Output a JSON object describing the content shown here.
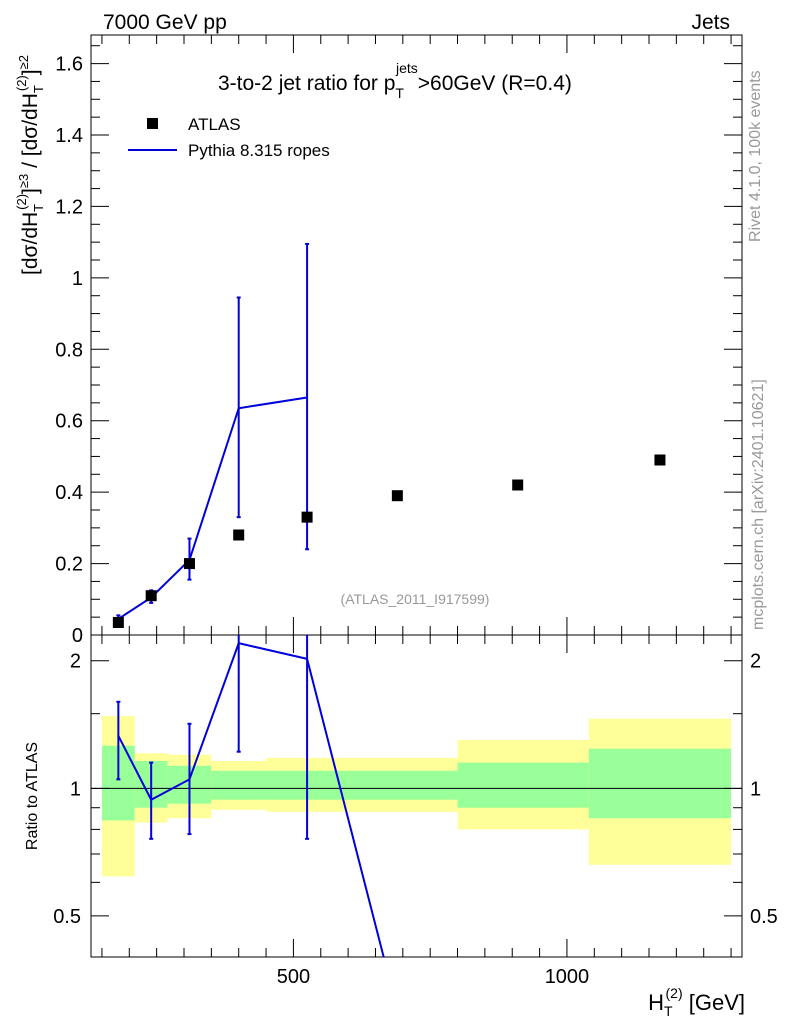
{
  "header": {
    "left": "7000 GeV pp",
    "right": "Jets"
  },
  "side_labels": {
    "rivet": "Rivet 4.1.0,  100k events",
    "mcplots": "mcplots.cern.ch [arXiv:2401.10621]"
  },
  "analysis_ref": "(ATLAS_2011_I917599)",
  "colors": {
    "mc": "#0000dd",
    "data": "#000000",
    "band_inner": "#99ff99",
    "band_outer": "#ffff99"
  },
  "chart_data": [
    {
      "type": "scatter",
      "role": "main",
      "title": "3-to-2 jet ratio for p_T^jets > 60GeV (R=0.4)",
      "title_parts": {
        "pre": "3-to-2 jet ratio for p",
        "sub": "T",
        "sup": "jets",
        "post": ">60GeV (R=0.4)"
      },
      "ylabel": "[dσ/dH_T^(2)]≥3 / [dσ/dH_T^(2)]≥2",
      "ylabel_parts": {
        "a": "[dσ/dH",
        "b": "T",
        "c": "(2)",
        "d": "]",
        "e": "≥3",
        "f": " / [dσ/dH",
        "g": "T",
        "h": "(2)",
        "i": "]",
        "j": "≥2"
      },
      "xlim": [
        130,
        1320
      ],
      "ylim": [
        0,
        1.68
      ],
      "y_ticks": [
        0,
        0.2,
        0.4,
        0.6,
        0.8,
        1,
        1.2,
        1.4,
        1.6
      ],
      "y_tick_labels": [
        "0",
        "0.2",
        "0.4",
        "0.6",
        "0.8",
        "1",
        "1.2",
        "1.4",
        "1.6"
      ],
      "legend": [
        {
          "name": "ATLAS",
          "kind": "marker"
        },
        {
          "name": "Pythia 8.315 ropes",
          "kind": "line"
        }
      ],
      "series": [
        {
          "name": "ATLAS",
          "x": [
            180,
            240,
            310,
            400,
            525,
            690,
            910,
            1170
          ],
          "y": [
            0.035,
            0.11,
            0.2,
            0.28,
            0.33,
            0.39,
            0.42,
            0.49
          ]
        },
        {
          "name": "Pythia 8.315 ropes",
          "x": [
            180,
            240,
            310,
            400,
            525
          ],
          "y": [
            0.045,
            0.105,
            0.21,
            0.635,
            0.665
          ],
          "err_low": [
            0.032,
            0.09,
            0.155,
            0.33,
            0.24
          ],
          "err_high": [
            0.055,
            0.125,
            0.27,
            0.945,
            1.095
          ]
        }
      ]
    },
    {
      "type": "line",
      "role": "ratio",
      "xlabel": "H_T^(2) [GeV]",
      "xlabel_parts": {
        "a": "H",
        "b": "T",
        "c": "(2)",
        "d": " [GeV]"
      },
      "ylabel": "Ratio to ATLAS",
      "xlim": [
        130,
        1320
      ],
      "ylim_log": [
        0.4,
        2.3
      ],
      "x_ticks": [
        500,
        1000
      ],
      "x_tick_labels": [
        "500",
        "1000"
      ],
      "y_ticks": [
        0.5,
        1,
        2
      ],
      "y_tick_labels": [
        "0.5",
        "1",
        "2"
      ],
      "bins": [
        {
          "lo": 150,
          "hi": 210,
          "inner": [
            0.84,
            1.26
          ],
          "outer": [
            0.62,
            1.48
          ]
        },
        {
          "lo": 210,
          "hi": 270,
          "inner": [
            0.9,
            1.16
          ],
          "outer": [
            0.83,
            1.21
          ]
        },
        {
          "lo": 270,
          "hi": 350,
          "inner": [
            0.92,
            1.13
          ],
          "outer": [
            0.85,
            1.2
          ]
        },
        {
          "lo": 350,
          "hi": 450,
          "inner": [
            0.94,
            1.1
          ],
          "outer": [
            0.89,
            1.16
          ]
        },
        {
          "lo": 450,
          "hi": 600,
          "inner": [
            0.94,
            1.1
          ],
          "outer": [
            0.88,
            1.18
          ]
        },
        {
          "lo": 600,
          "hi": 800,
          "inner": [
            0.94,
            1.1
          ],
          "outer": [
            0.88,
            1.18
          ]
        },
        {
          "lo": 800,
          "hi": 1040,
          "inner": [
            0.9,
            1.15
          ],
          "outer": [
            0.8,
            1.3
          ]
        },
        {
          "lo": 1040,
          "hi": 1300,
          "inner": [
            0.85,
            1.24
          ],
          "outer": [
            0.66,
            1.46
          ]
        }
      ],
      "series": [
        {
          "name": "Pythia 8.315 / ATLAS",
          "x": [
            180,
            240,
            310,
            400,
            525,
            665
          ],
          "y": [
            1.33,
            0.94,
            1.05,
            2.2,
            2.02,
            0.4
          ],
          "err_low": [
            1.05,
            0.76,
            0.78,
            1.22,
            0.76,
            null
          ],
          "err_high": [
            1.6,
            1.15,
            1.42,
            null,
            null,
            null
          ]
        }
      ]
    }
  ]
}
